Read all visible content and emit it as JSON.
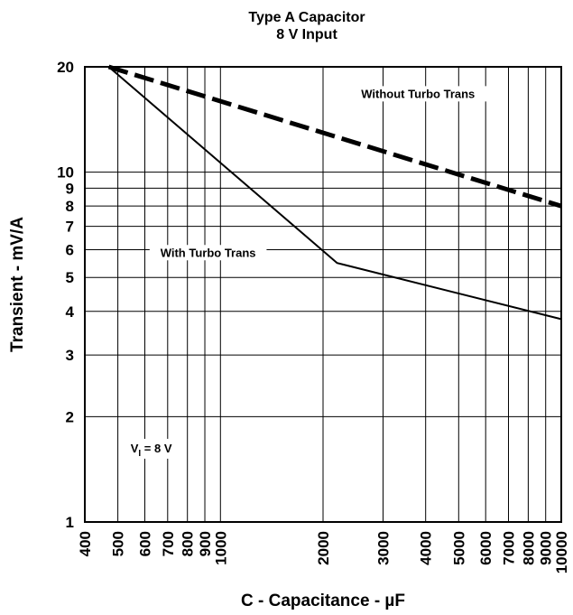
{
  "chart_data": {
    "type": "line",
    "title": [
      "Type A Capacitor",
      "8 V Input"
    ],
    "xlabel": "C - Capacitance - µF",
    "ylabel": "Transient - mV/A",
    "x_scale": "log",
    "y_scale": "log",
    "xlim": [
      400,
      10000
    ],
    "ylim": [
      1,
      20
    ],
    "x_ticks": [
      400,
      500,
      600,
      700,
      800,
      900,
      1000,
      2000,
      3000,
      4000,
      5000,
      6000,
      7000,
      8000,
      9000,
      10000
    ],
    "x_tick_labels": [
      "400",
      "500",
      "600",
      "700",
      "800",
      "900",
      "1000",
      "2000",
      "3000",
      "4000",
      "5000",
      "6000",
      "7000",
      "8000",
      "9000",
      "10000"
    ],
    "y_ticks": [
      1,
      2,
      3,
      4,
      5,
      6,
      7,
      8,
      9,
      10,
      20
    ],
    "y_tick_labels": [
      "1",
      "2",
      "3",
      "4",
      "5",
      "6",
      "7",
      "8",
      "9",
      "10",
      "20"
    ],
    "grid": true,
    "series": [
      {
        "name": "Without Turbo Trans",
        "style": "dashed",
        "x": [
          470,
          10000
        ],
        "y": [
          20,
          8
        ]
      },
      {
        "name": "With Turbo Trans",
        "style": "solid",
        "x": [
          470,
          2200,
          10000
        ],
        "y": [
          20,
          5.5,
          3.8
        ]
      }
    ],
    "annotations": [
      {
        "text": "Without Turbo Trans",
        "x": 3800,
        "y": 16.5
      },
      {
        "text": "With Turbo Trans",
        "x": 920,
        "y": 5.8
      },
      {
        "text_main": "V",
        "text_sub": "I",
        "text_rest": " = 8 V",
        "x": 545,
        "y": 1.6
      }
    ]
  }
}
